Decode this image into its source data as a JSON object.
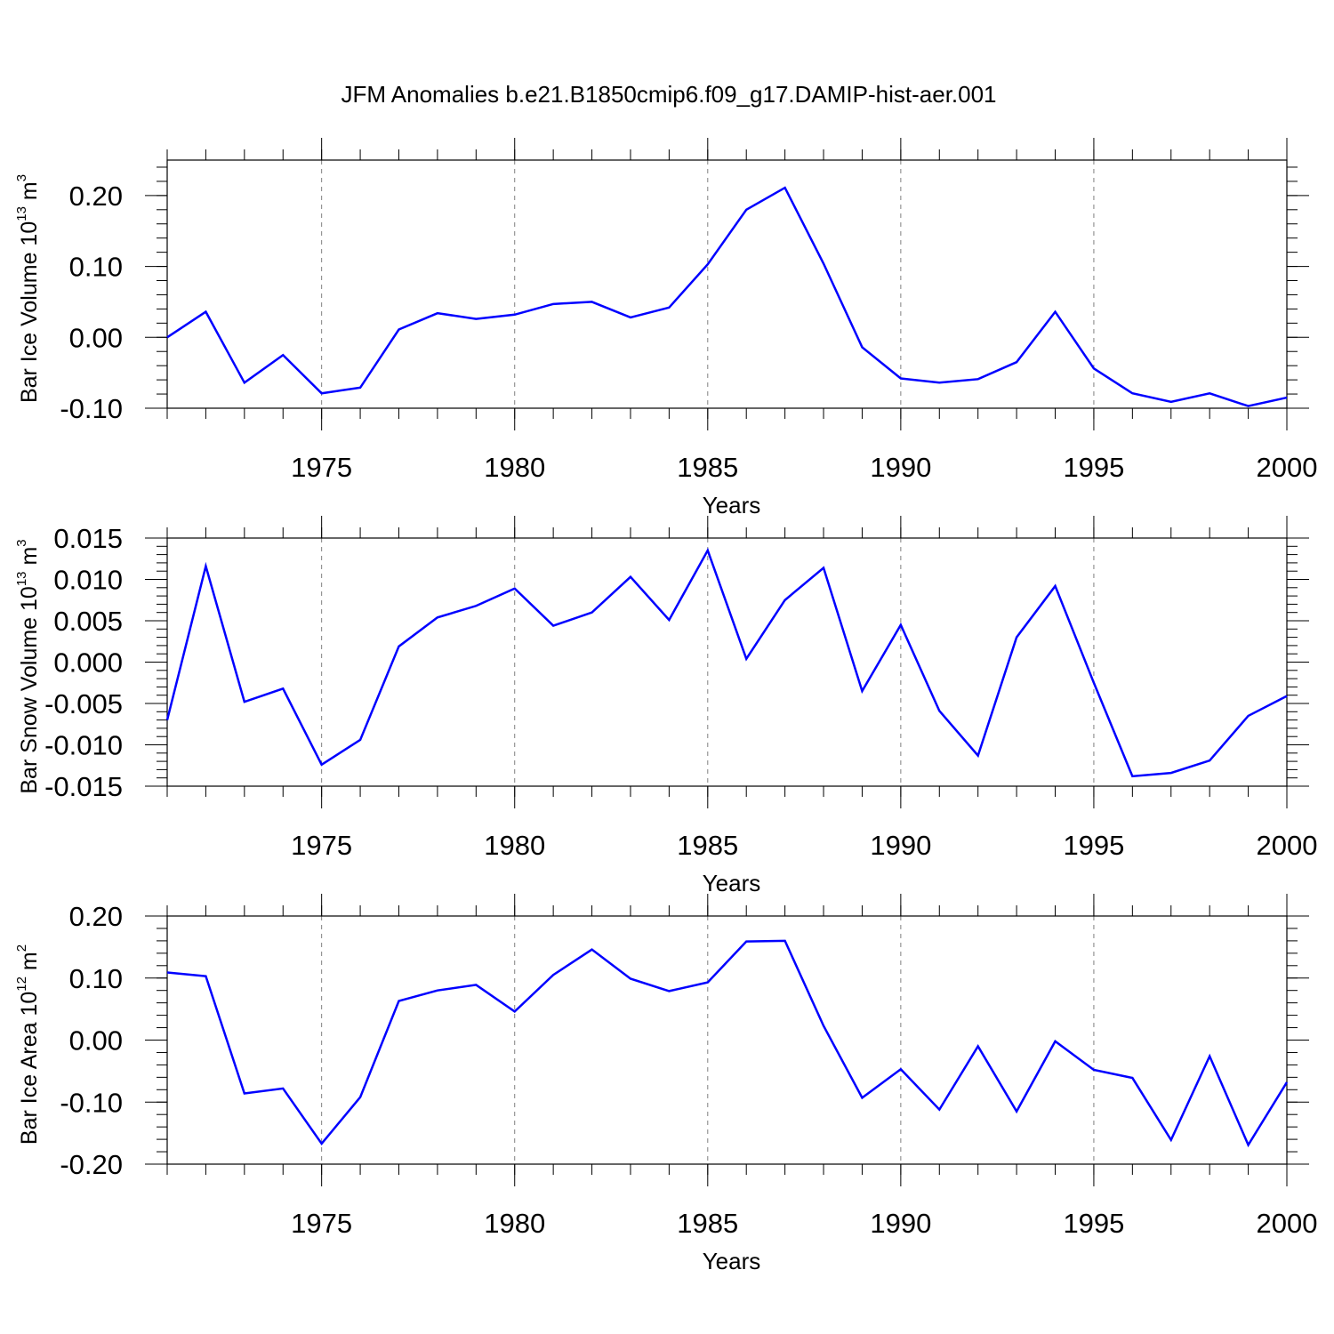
{
  "title": "JFM Anomalies b.e21.B1850cmip6.f09_g17.DAMIP-hist-aer.001",
  "colors": {
    "line": "#0000ff",
    "axis": "#000000",
    "grid": "#808080"
  },
  "chart_data": [
    {
      "type": "line",
      "title": "",
      "xlabel": "Years",
      "ylabel": {
        "text": "Bar Ice Volume 10",
        "exponent": "13",
        "unit": " m",
        "unit_exponent": "3"
      },
      "xlim": [
        1971,
        2000
      ],
      "ylim": [
        -0.1,
        0.25
      ],
      "x_ticks": [
        1975,
        1980,
        1985,
        1990,
        1995,
        2000
      ],
      "x_tick_labels": [
        "1975",
        "1980",
        "1985",
        "1990",
        "1995",
        "2000"
      ],
      "y_ticks": [
        -0.1,
        0.0,
        0.1,
        0.2
      ],
      "y_tick_labels": [
        "-0.10",
        "0.00",
        "0.10",
        "0.20"
      ],
      "grid": "vertical dashed at major x ticks",
      "x": [
        1971,
        1972,
        1973,
        1974,
        1975,
        1976,
        1977,
        1978,
        1979,
        1980,
        1981,
        1982,
        1983,
        1984,
        1985,
        1986,
        1987,
        1988,
        1989,
        1990,
        1991,
        1992,
        1993,
        1994,
        1995,
        1996,
        1997,
        1998,
        1999,
        2000
      ],
      "series": [
        {
          "values": [
            0.0,
            0.036,
            -0.064,
            -0.025,
            -0.079,
            -0.071,
            0.011,
            0.034,
            0.026,
            0.032,
            0.047,
            0.05,
            0.028,
            0.042,
            0.103,
            0.18,
            0.211,
            0.104,
            -0.014,
            -0.058,
            -0.064,
            -0.059,
            -0.035,
            0.036,
            -0.044,
            -0.079,
            -0.091,
            -0.079,
            -0.097,
            -0.085
          ]
        }
      ]
    },
    {
      "type": "line",
      "title": "",
      "xlabel": "Years",
      "ylabel": {
        "text": "Bar Snow Volume 10",
        "exponent": "13",
        "unit": " m",
        "unit_exponent": "3"
      },
      "xlim": [
        1971,
        2000
      ],
      "ylim": [
        -0.015,
        0.015
      ],
      "x_ticks": [
        1975,
        1980,
        1985,
        1990,
        1995,
        2000
      ],
      "x_tick_labels": [
        "1975",
        "1980",
        "1985",
        "1990",
        "1995",
        "2000"
      ],
      "y_ticks": [
        -0.015,
        -0.01,
        -0.005,
        0.0,
        0.005,
        0.01,
        0.015
      ],
      "y_tick_labels": [
        "-0.015",
        "-0.010",
        "-0.005",
        "0.000",
        "0.005",
        "0.010",
        "0.015"
      ],
      "grid": "vertical dashed at major x ticks",
      "x": [
        1971,
        1972,
        1973,
        1974,
        1975,
        1976,
        1977,
        1978,
        1979,
        1980,
        1981,
        1982,
        1983,
        1984,
        1985,
        1986,
        1987,
        1988,
        1989,
        1990,
        1991,
        1992,
        1993,
        1994,
        1995,
        1996,
        1997,
        1998,
        1999,
        2000
      ],
      "series": [
        {
          "values": [
            -0.007,
            0.0116,
            -0.0048,
            -0.0032,
            -0.0124,
            -0.0094,
            0.0019,
            0.0054,
            0.0068,
            0.0089,
            0.0044,
            0.006,
            0.0103,
            0.0051,
            0.0135,
            0.0004,
            0.0075,
            0.0114,
            -0.0035,
            0.0045,
            -0.0059,
            -0.0113,
            0.003,
            0.0092,
            -0.0025,
            -0.0138,
            -0.0134,
            -0.0119,
            -0.0065,
            -0.0041
          ]
        }
      ]
    },
    {
      "type": "line",
      "title": "",
      "xlabel": "Years",
      "ylabel": {
        "text": "Bar Ice Area 10",
        "exponent": "12",
        "unit": " m",
        "unit_exponent": "2"
      },
      "xlim": [
        1971,
        2000
      ],
      "ylim": [
        -0.2,
        0.2
      ],
      "x_ticks": [
        1975,
        1980,
        1985,
        1990,
        1995,
        2000
      ],
      "x_tick_labels": [
        "1975",
        "1980",
        "1985",
        "1990",
        "1995",
        "2000"
      ],
      "y_ticks": [
        -0.2,
        -0.1,
        0.0,
        0.1,
        0.2
      ],
      "y_tick_labels": [
        "-0.20",
        "-0.10",
        "0.00",
        "0.10",
        "0.20"
      ],
      "grid": "vertical dashed at major x ticks",
      "x": [
        1971,
        1972,
        1973,
        1974,
        1975,
        1976,
        1977,
        1978,
        1979,
        1980,
        1981,
        1982,
        1983,
        1984,
        1985,
        1986,
        1987,
        1988,
        1989,
        1990,
        1991,
        1992,
        1993,
        1994,
        1995,
        1996,
        1997,
        1998,
        1999,
        2000
      ],
      "series": [
        {
          "values": [
            0.109,
            0.103,
            -0.086,
            -0.078,
            -0.167,
            -0.092,
            0.063,
            0.08,
            0.089,
            0.046,
            0.105,
            0.146,
            0.099,
            0.079,
            0.093,
            0.159,
            0.16,
            0.023,
            -0.093,
            -0.047,
            -0.112,
            -0.01,
            -0.115,
            -0.002,
            -0.048,
            -0.061,
            -0.161,
            -0.026,
            -0.169,
            -0.068
          ]
        }
      ]
    }
  ]
}
